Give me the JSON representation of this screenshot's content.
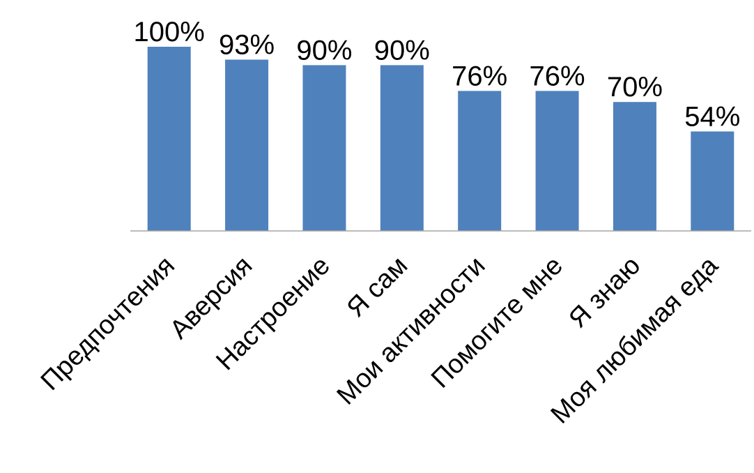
{
  "chart_data": {
    "type": "bar",
    "categories": [
      "Предпочтения",
      "Аверсия",
      "Настроение",
      "Я сам",
      "Мои активности",
      "Помогите мне",
      "Я знаю",
      "Моя любимая еда"
    ],
    "values": [
      100,
      93,
      90,
      90,
      76,
      76,
      70,
      54
    ],
    "data_labels": [
      "100%",
      "93%",
      "90%",
      "90%",
      "76%",
      "76%",
      "70%",
      "54%"
    ],
    "unit": "%",
    "ylim": [
      0,
      100
    ],
    "grid": false,
    "legend": "none",
    "bar_color": "#4f81bd",
    "axis_color": "#a6a6a6"
  }
}
